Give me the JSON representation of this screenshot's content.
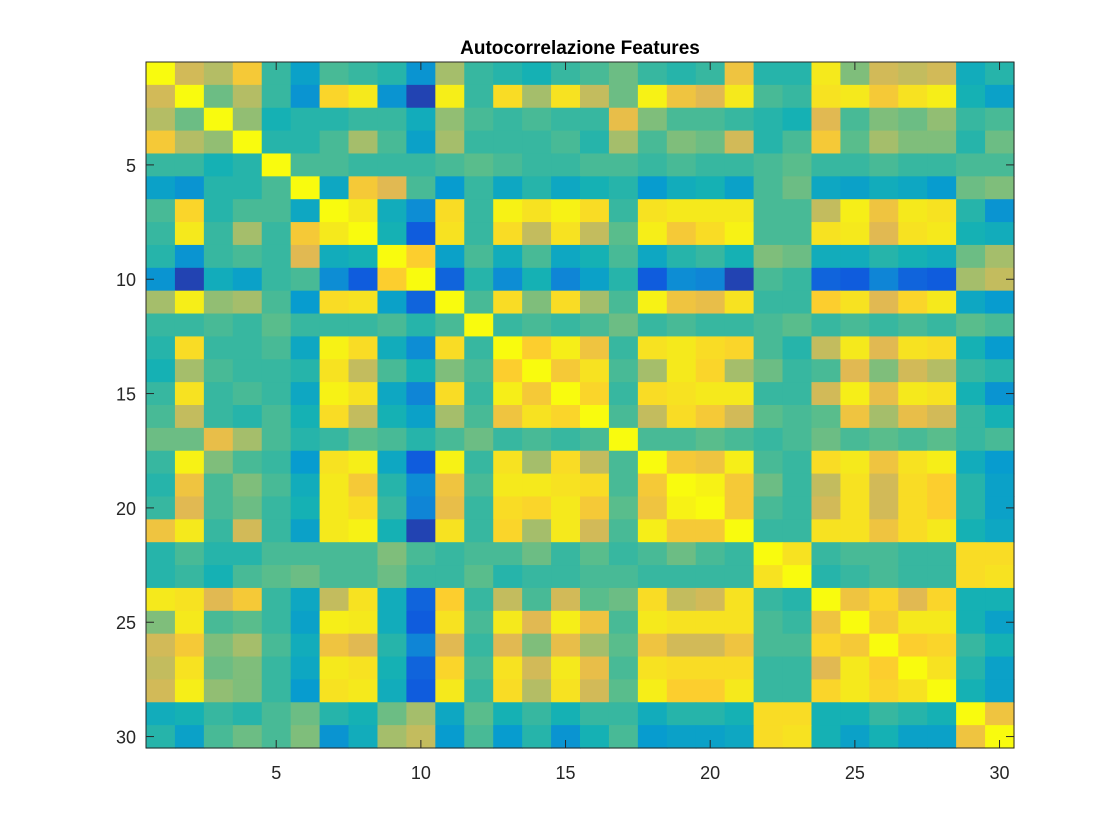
{
  "chart_data": {
    "type": "heatmap",
    "title": "Autocorrelazione Features",
    "xlabel": "",
    "ylabel": "",
    "rows": 30,
    "cols": 30,
    "xlim": [
      0.5,
      30.5
    ],
    "ylim": [
      0.5,
      30.5
    ],
    "y_direction": "reverse",
    "x_ticks": [
      5,
      10,
      15,
      20,
      25,
      30
    ],
    "y_ticks": [
      5,
      10,
      15,
      20,
      25,
      30
    ],
    "colormap": "parula",
    "clim": [
      -1,
      1
    ],
    "matrix": [
      [
        1.0,
        0.35,
        0.25,
        0.55,
        -0.1,
        -0.35,
        -0.05,
        -0.1,
        -0.15,
        -0.45,
        0.2,
        -0.1,
        -0.15,
        -0.2,
        -0.1,
        -0.05,
        0.05,
        -0.1,
        -0.15,
        -0.1,
        0.5,
        -0.15,
        -0.15,
        0.8,
        0.1,
        0.35,
        0.3,
        0.35,
        -0.25,
        -0.15
      ],
      [
        0.35,
        1.0,
        0.05,
        0.25,
        -0.1,
        -0.45,
        0.65,
        0.8,
        -0.45,
        -0.9,
        0.85,
        -0.1,
        0.7,
        0.2,
        0.75,
        0.3,
        0.05,
        0.9,
        0.5,
        0.4,
        0.8,
        -0.05,
        -0.1,
        0.75,
        0.8,
        0.55,
        0.75,
        0.85,
        -0.2,
        -0.35
      ],
      [
        0.25,
        0.05,
        1.0,
        0.15,
        -0.2,
        -0.15,
        -0.15,
        -0.1,
        -0.1,
        -0.25,
        0.15,
        -0.05,
        -0.1,
        -0.05,
        -0.1,
        -0.1,
        0.45,
        0.1,
        -0.05,
        -0.05,
        -0.1,
        -0.15,
        -0.2,
        0.4,
        -0.05,
        0.1,
        0.05,
        0.15,
        -0.1,
        -0.05
      ],
      [
        0.55,
        0.25,
        0.15,
        1.0,
        -0.15,
        -0.15,
        -0.05,
        0.2,
        -0.05,
        -0.35,
        0.2,
        -0.1,
        -0.1,
        -0.1,
        -0.05,
        -0.15,
        0.2,
        -0.05,
        0.1,
        0.05,
        0.35,
        -0.15,
        -0.05,
        0.55,
        0.0,
        0.2,
        0.1,
        0.1,
        -0.15,
        0.05
      ],
      [
        -0.1,
        -0.1,
        -0.2,
        -0.15,
        1.0,
        -0.05,
        -0.05,
        -0.1,
        -0.1,
        -0.1,
        -0.05,
        0.0,
        -0.05,
        -0.1,
        -0.1,
        -0.05,
        -0.05,
        -0.1,
        -0.05,
        -0.1,
        -0.1,
        -0.05,
        0.0,
        -0.1,
        -0.1,
        -0.05,
        -0.1,
        -0.1,
        -0.05,
        -0.05
      ],
      [
        -0.35,
        -0.45,
        -0.15,
        -0.15,
        -0.05,
        1.0,
        -0.3,
        0.55,
        0.4,
        -0.05,
        -0.4,
        -0.1,
        -0.3,
        -0.15,
        -0.3,
        -0.2,
        -0.15,
        -0.4,
        -0.25,
        -0.2,
        -0.35,
        -0.05,
        0.05,
        -0.3,
        -0.35,
        -0.25,
        -0.3,
        -0.4,
        0.05,
        0.1
      ],
      [
        -0.05,
        0.65,
        -0.15,
        -0.05,
        -0.05,
        -0.3,
        1.0,
        0.8,
        -0.25,
        -0.5,
        0.7,
        -0.1,
        0.9,
        0.75,
        0.9,
        0.7,
        -0.1,
        0.75,
        0.8,
        0.8,
        0.8,
        -0.05,
        -0.05,
        0.3,
        0.85,
        0.5,
        0.8,
        0.75,
        -0.15,
        -0.45
      ],
      [
        -0.1,
        0.8,
        -0.1,
        0.2,
        -0.1,
        0.55,
        0.8,
        1.0,
        -0.2,
        -0.8,
        0.75,
        -0.1,
        0.7,
        0.3,
        0.75,
        0.3,
        0.0,
        0.85,
        0.55,
        0.7,
        0.9,
        -0.05,
        -0.05,
        0.75,
        0.8,
        0.4,
        0.75,
        0.8,
        -0.2,
        -0.25
      ],
      [
        -0.15,
        -0.45,
        -0.1,
        -0.05,
        -0.1,
        0.4,
        -0.25,
        -0.2,
        1.0,
        0.6,
        -0.35,
        -0.05,
        -0.25,
        -0.05,
        -0.3,
        -0.2,
        -0.05,
        -0.3,
        -0.15,
        -0.1,
        -0.2,
        0.1,
        0.05,
        -0.25,
        -0.25,
        -0.15,
        -0.2,
        -0.25,
        0.05,
        0.2
      ],
      [
        -0.45,
        -0.9,
        -0.25,
        -0.35,
        -0.1,
        -0.05,
        -0.5,
        -0.8,
        0.6,
        1.0,
        -0.75,
        -0.15,
        -0.5,
        -0.2,
        -0.55,
        -0.35,
        -0.15,
        -0.8,
        -0.5,
        -0.55,
        -0.9,
        -0.05,
        -0.1,
        -0.75,
        -0.8,
        -0.55,
        -0.75,
        -0.8,
        0.2,
        0.3
      ],
      [
        0.2,
        0.85,
        0.15,
        0.2,
        -0.05,
        -0.4,
        0.7,
        0.75,
        -0.35,
        -0.75,
        1.0,
        -0.05,
        0.7,
        0.1,
        0.7,
        0.2,
        -0.05,
        0.9,
        0.5,
        0.45,
        0.75,
        -0.1,
        -0.1,
        0.6,
        0.75,
        0.4,
        0.65,
        0.8,
        -0.3,
        -0.4
      ],
      [
        -0.1,
        -0.1,
        -0.05,
        -0.1,
        0.0,
        -0.1,
        -0.1,
        -0.1,
        -0.05,
        -0.15,
        -0.05,
        1.0,
        -0.1,
        -0.05,
        -0.1,
        -0.05,
        0.05,
        -0.1,
        -0.05,
        -0.1,
        -0.1,
        -0.05,
        0.0,
        -0.1,
        -0.05,
        -0.1,
        -0.05,
        -0.1,
        0.0,
        -0.05
      ],
      [
        -0.15,
        0.7,
        -0.1,
        -0.1,
        -0.05,
        -0.3,
        0.9,
        0.7,
        -0.25,
        -0.5,
        0.7,
        -0.1,
        1.0,
        0.6,
        0.85,
        0.5,
        -0.1,
        0.75,
        0.8,
        0.7,
        0.65,
        -0.05,
        -0.15,
        0.3,
        0.8,
        0.4,
        0.75,
        0.7,
        -0.2,
        -0.4
      ],
      [
        -0.2,
        0.2,
        -0.05,
        -0.1,
        -0.1,
        -0.15,
        0.75,
        0.3,
        -0.05,
        -0.2,
        0.1,
        -0.05,
        0.6,
        1.0,
        0.55,
        0.75,
        -0.05,
        0.2,
        0.8,
        0.65,
        0.2,
        0.05,
        -0.1,
        -0.05,
        0.4,
        0.1,
        0.35,
        0.25,
        -0.1,
        -0.15
      ],
      [
        -0.1,
        0.75,
        -0.1,
        -0.05,
        -0.1,
        -0.3,
        0.9,
        0.75,
        -0.3,
        -0.55,
        0.7,
        -0.1,
        0.85,
        0.55,
        1.0,
        0.65,
        -0.1,
        0.7,
        0.75,
        0.8,
        0.8,
        -0.1,
        -0.1,
        0.35,
        0.85,
        0.45,
        0.8,
        0.75,
        -0.2,
        -0.45
      ],
      [
        -0.05,
        0.3,
        -0.1,
        -0.15,
        -0.05,
        -0.2,
        0.7,
        0.3,
        -0.2,
        -0.35,
        0.2,
        -0.05,
        0.5,
        0.75,
        0.65,
        1.0,
        -0.05,
        0.3,
        0.7,
        0.55,
        0.35,
        0.0,
        -0.05,
        0.0,
        0.5,
        0.2,
        0.45,
        0.35,
        -0.1,
        -0.2
      ],
      [
        0.05,
        0.05,
        0.45,
        0.2,
        -0.05,
        -0.15,
        -0.1,
        0.0,
        -0.05,
        -0.15,
        -0.05,
        0.05,
        -0.1,
        -0.05,
        -0.1,
        -0.05,
        1.0,
        -0.05,
        -0.05,
        0.0,
        -0.05,
        -0.1,
        -0.05,
        0.05,
        -0.05,
        0.0,
        -0.05,
        0.0,
        -0.1,
        -0.05
      ],
      [
        -0.1,
        0.9,
        0.1,
        -0.05,
        -0.1,
        -0.4,
        0.75,
        0.85,
        -0.3,
        -0.8,
        0.9,
        -0.1,
        0.75,
        0.2,
        0.7,
        0.3,
        -0.05,
        1.0,
        0.55,
        0.5,
        0.85,
        -0.05,
        -0.1,
        0.7,
        0.8,
        0.5,
        0.75,
        0.85,
        -0.25,
        -0.4
      ],
      [
        -0.15,
        0.5,
        -0.05,
        0.1,
        -0.05,
        -0.25,
        0.8,
        0.55,
        -0.15,
        -0.5,
        0.5,
        -0.05,
        0.8,
        0.8,
        0.75,
        0.7,
        -0.05,
        0.55,
        1.0,
        0.9,
        0.55,
        0.05,
        -0.1,
        0.3,
        0.75,
        0.35,
        0.7,
        0.6,
        -0.15,
        -0.35
      ],
      [
        -0.1,
        0.4,
        -0.05,
        0.05,
        -0.1,
        -0.2,
        0.8,
        0.7,
        -0.1,
        -0.55,
        0.45,
        -0.1,
        0.7,
        0.65,
        0.8,
        0.55,
        0.0,
        0.5,
        0.9,
        1.0,
        0.55,
        -0.05,
        -0.1,
        0.35,
        0.75,
        0.35,
        0.7,
        0.6,
        -0.15,
        -0.35
      ],
      [
        0.5,
        0.8,
        -0.1,
        0.35,
        -0.1,
        -0.35,
        0.8,
        0.9,
        -0.2,
        -0.9,
        0.75,
        -0.1,
        0.65,
        0.2,
        0.8,
        0.35,
        -0.05,
        0.85,
        0.55,
        0.55,
        1.0,
        -0.1,
        -0.1,
        0.75,
        0.75,
        0.5,
        0.7,
        0.8,
        -0.2,
        -0.3
      ],
      [
        -0.15,
        -0.05,
        -0.15,
        -0.15,
        -0.05,
        -0.05,
        -0.05,
        -0.05,
        0.1,
        -0.05,
        -0.1,
        -0.05,
        -0.05,
        0.05,
        -0.1,
        0.0,
        -0.1,
        -0.05,
        0.05,
        -0.05,
        -0.1,
        1.0,
        0.75,
        -0.1,
        -0.05,
        -0.05,
        -0.1,
        -0.1,
        0.7,
        0.7
      ],
      [
        -0.15,
        -0.1,
        -0.2,
        -0.05,
        0.0,
        0.05,
        -0.05,
        -0.05,
        0.05,
        -0.1,
        -0.1,
        0.0,
        -0.15,
        -0.1,
        -0.1,
        -0.05,
        -0.05,
        -0.1,
        -0.1,
        -0.1,
        -0.1,
        0.75,
        1.0,
        -0.15,
        -0.1,
        -0.05,
        -0.1,
        -0.1,
        0.7,
        0.75
      ],
      [
        0.8,
        0.75,
        0.4,
        0.55,
        -0.1,
        -0.3,
        0.3,
        0.75,
        -0.25,
        -0.75,
        0.6,
        -0.1,
        0.3,
        -0.05,
        0.35,
        0.0,
        0.05,
        0.7,
        0.3,
        0.35,
        0.75,
        -0.1,
        -0.15,
        1.0,
        0.5,
        0.65,
        0.4,
        0.65,
        -0.2,
        -0.2
      ],
      [
        0.1,
        0.8,
        -0.05,
        0.0,
        -0.1,
        -0.35,
        0.85,
        0.8,
        -0.25,
        -0.8,
        0.75,
        -0.05,
        0.8,
        0.4,
        0.85,
        0.5,
        -0.05,
        0.8,
        0.75,
        0.75,
        0.75,
        -0.05,
        -0.1,
        0.5,
        1.0,
        0.55,
        0.8,
        0.8,
        -0.2,
        -0.35
      ],
      [
        0.35,
        0.55,
        0.1,
        0.2,
        -0.05,
        -0.25,
        0.5,
        0.4,
        -0.15,
        -0.55,
        0.4,
        -0.1,
        0.4,
        0.1,
        0.45,
        0.2,
        0.0,
        0.5,
        0.35,
        0.35,
        0.5,
        -0.05,
        -0.05,
        0.65,
        0.55,
        1.0,
        0.6,
        0.65,
        -0.1,
        -0.2
      ],
      [
        0.3,
        0.75,
        0.05,
        0.1,
        -0.1,
        -0.3,
        0.8,
        0.75,
        -0.2,
        -0.75,
        0.65,
        -0.05,
        0.75,
        0.35,
        0.8,
        0.45,
        -0.05,
        0.75,
        0.7,
        0.7,
        0.7,
        -0.1,
        -0.1,
        0.4,
        0.8,
        0.6,
        1.0,
        0.75,
        -0.15,
        -0.35
      ],
      [
        0.35,
        0.85,
        0.15,
        0.1,
        -0.1,
        -0.4,
        0.75,
        0.8,
        -0.25,
        -0.8,
        0.8,
        -0.1,
        0.7,
        0.25,
        0.75,
        0.35,
        0.0,
        0.85,
        0.6,
        0.6,
        0.8,
        -0.1,
        -0.1,
        0.65,
        0.8,
        0.65,
        0.75,
        1.0,
        -0.2,
        -0.35
      ],
      [
        -0.25,
        -0.2,
        -0.1,
        -0.15,
        -0.05,
        0.05,
        -0.15,
        -0.2,
        0.05,
        0.2,
        -0.3,
        0.0,
        -0.2,
        -0.1,
        -0.2,
        -0.1,
        -0.1,
        -0.25,
        -0.15,
        -0.15,
        -0.2,
        0.7,
        0.7,
        -0.2,
        -0.2,
        -0.1,
        -0.15,
        -0.2,
        1.0,
        0.5
      ],
      [
        -0.15,
        -0.35,
        -0.05,
        0.05,
        -0.05,
        0.1,
        -0.45,
        -0.25,
        0.2,
        0.3,
        -0.4,
        -0.05,
        -0.4,
        -0.15,
        -0.45,
        -0.2,
        -0.05,
        -0.4,
        -0.35,
        -0.35,
        -0.3,
        0.7,
        0.75,
        -0.2,
        -0.35,
        -0.2,
        -0.35,
        -0.35,
        0.5,
        1.0
      ]
    ]
  },
  "palette": {
    "axis_color": "#262626",
    "background": "#ffffff"
  }
}
